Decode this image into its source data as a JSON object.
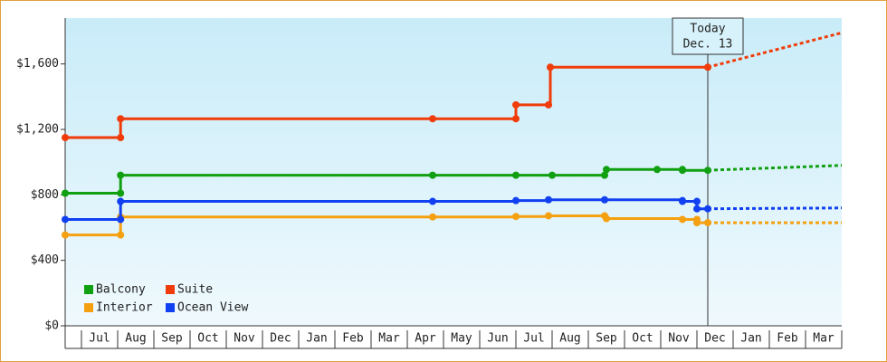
{
  "chart_data": {
    "type": "step-line",
    "xlim": [
      -0.45,
      21
    ],
    "ylim": [
      0,
      1880
    ],
    "xticks": [
      {
        "value": 0.5,
        "label": "Jul"
      },
      {
        "value": 1.5,
        "label": "Aug"
      },
      {
        "value": 2.5,
        "label": "Sep"
      },
      {
        "value": 3.5,
        "label": "Oct"
      },
      {
        "value": 4.5,
        "label": "Nov"
      },
      {
        "value": 5.5,
        "label": "Dec"
      },
      {
        "value": 6.5,
        "label": "Jan"
      },
      {
        "value": 7.5,
        "label": "Feb"
      },
      {
        "value": 8.5,
        "label": "Mar"
      },
      {
        "value": 9.5,
        "label": "Apr"
      },
      {
        "value": 10.5,
        "label": "May"
      },
      {
        "value": 11.5,
        "label": "Jun"
      },
      {
        "value": 12.5,
        "label": "Jul"
      },
      {
        "value": 13.5,
        "label": "Aug"
      },
      {
        "value": 14.5,
        "label": "Sep"
      },
      {
        "value": 15.5,
        "label": "Oct"
      },
      {
        "value": 16.5,
        "label": "Nov"
      },
      {
        "value": 17.5,
        "label": "Dec"
      },
      {
        "value": 18.5,
        "label": "Jan"
      },
      {
        "value": 19.5,
        "label": "Feb"
      },
      {
        "value": 20.5,
        "label": "Mar"
      }
    ],
    "yticks": [
      {
        "value": 0,
        "label": "$0"
      },
      {
        "value": 400,
        "label": "$400"
      },
      {
        "value": 800,
        "label": "$800"
      },
      {
        "value": 1200,
        "label": "$1,200"
      },
      {
        "value": 1600,
        "label": "$1,600"
      }
    ],
    "today": {
      "x": 17.3,
      "label": [
        "Today",
        "Dec. 13"
      ]
    },
    "series": [
      {
        "name": "Balcony",
        "color": "#11a011",
        "x": [
          -0.45,
          1.08,
          1.08,
          9.7,
          12.0,
          13.0,
          14.45,
          14.5,
          15.9,
          16.6,
          16.6,
          17.3
        ],
        "values": [
          810,
          810,
          920,
          920,
          920,
          920,
          920,
          955,
          955,
          955,
          950,
          950
        ],
        "forecast": {
          "x": [
            17.3,
            21
          ],
          "values": [
            950,
            980
          ]
        }
      },
      {
        "name": "Suite",
        "color": "#f03c0a",
        "x": [
          -0.45,
          1.08,
          1.08,
          9.7,
          12.0,
          12.0,
          12.9,
          12.95,
          17.3
        ],
        "values": [
          1150,
          1150,
          1265,
          1265,
          1265,
          1350,
          1350,
          1580,
          1580
        ],
        "forecast": {
          "x": [
            17.3,
            21
          ],
          "values": [
            1580,
            1790
          ]
        }
      },
      {
        "name": "Interior",
        "color": "#f5a010",
        "x": [
          -0.45,
          1.08,
          1.08,
          9.7,
          12.0,
          12.9,
          14.45,
          14.5,
          16.6,
          17.0,
          17.0,
          17.3
        ],
        "values": [
          555,
          555,
          665,
          665,
          668,
          672,
          672,
          655,
          650,
          650,
          630,
          630
        ],
        "forecast": {
          "x": [
            17.3,
            21
          ],
          "values": [
            630,
            630
          ]
        }
      },
      {
        "name": "Ocean View",
        "color": "#1040f0",
        "x": [
          -0.45,
          1.08,
          1.08,
          9.7,
          12.0,
          12.9,
          14.45,
          16.6,
          16.6,
          17.0,
          17.0,
          17.3
        ],
        "values": [
          650,
          650,
          760,
          760,
          765,
          770,
          770,
          765,
          760,
          760,
          715,
          715
        ],
        "forecast": {
          "x": [
            17.3,
            21
          ],
          "values": [
            715,
            720
          ]
        }
      }
    ]
  }
}
